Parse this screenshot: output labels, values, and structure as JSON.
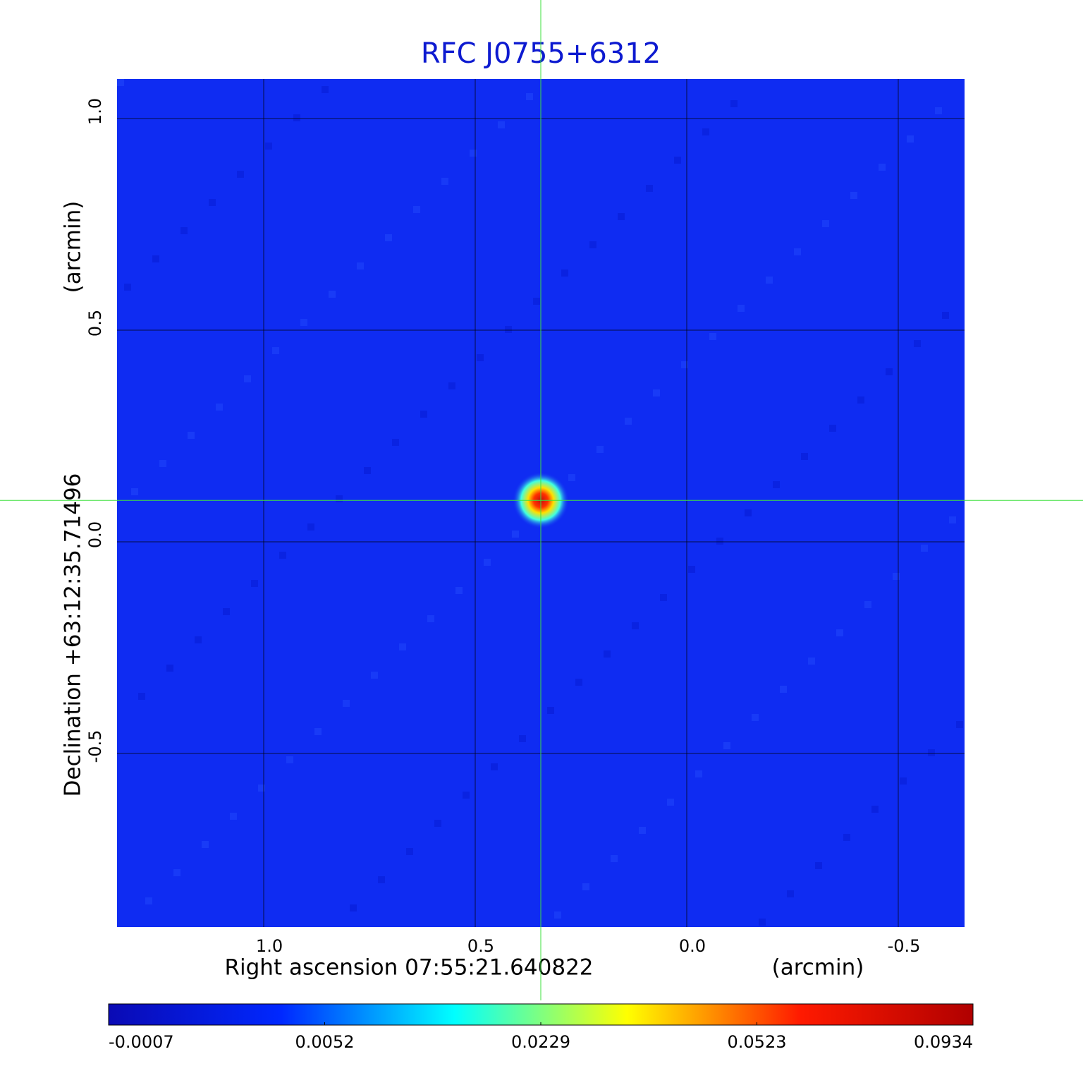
{
  "chart_data": {
    "type": "image",
    "title": "RFC J0755+6312",
    "x_label": "Right ascension  07:55:21.640822",
    "x_unit": "(arcmin)",
    "y_label": "Declination  +63:12:35.71496",
    "y_unit": "(arcmin)",
    "xlim": [
      1.3467,
      -0.6567
    ],
    "ylim": [
      -0.91,
      1.0933
    ],
    "xticks": [
      {
        "value": 1,
        "label": "1.0"
      },
      0.5,
      {
        "value": 0,
        "label": "0.0"
      },
      -0.5
    ],
    "yticks": [
      -0.5,
      {
        "value": 0,
        "label": "0.0"
      },
      0.5,
      {
        "value": 1,
        "label": "1.0"
      }
    ],
    "grid": true,
    "background_color": "#0f2cf2",
    "source": {
      "x": 0.345,
      "y": 0.098
    },
    "crosshair_color": "#3ee03e",
    "colorbar": {
      "ticks": [
        -0.0007,
        0.0052,
        0.0229,
        0.0523,
        0.0934
      ],
      "colormap": [
        "#0a0ab4",
        "#0028ff",
        "#00ffff",
        "#ffff00",
        "#ff1a00",
        "#b00000"
      ]
    }
  }
}
